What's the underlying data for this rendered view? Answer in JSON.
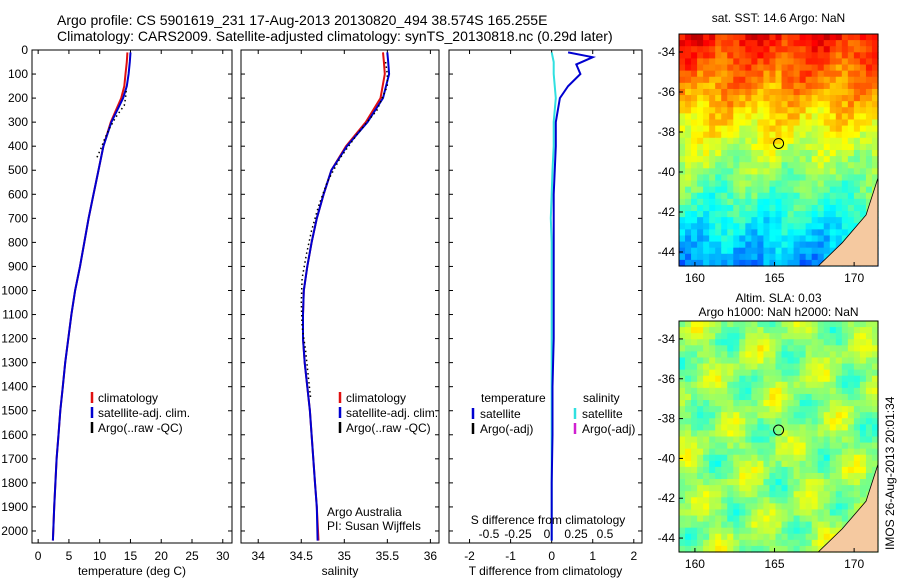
{
  "header": {
    "line1": "Argo profile: CS 5901619_231 17-Aug-2013 20130820_494 38.574S 165.255E",
    "line2": "Climatology: CARS2009. Satellite-adjusted climatology: synTS_20130818.nc (0.29d later)"
  },
  "colors": {
    "climatology": "#e01010",
    "satellite": "#0000d0",
    "argo": "#000000",
    "sal_satellite": "#30e0e0",
    "sal_argo": "#d020d0"
  },
  "depth_axis": {
    "ylim": [
      0,
      2050
    ],
    "ticks": [
      0,
      100,
      200,
      300,
      400,
      500,
      600,
      700,
      800,
      900,
      1000,
      1100,
      1200,
      1300,
      1400,
      1500,
      1600,
      1700,
      1800,
      1900,
      2000
    ]
  },
  "chart_data": [
    {
      "type": "line",
      "id": "temperature",
      "xlabel": "temperature (deg C)",
      "xlim": [
        -1,
        31.5
      ],
      "xticks": [
        0,
        5,
        10,
        15,
        20,
        25,
        30
      ],
      "legend": [
        "climatology",
        "satellite-adj. clim.",
        "Argo(..raw -QC)"
      ],
      "series": [
        {
          "name": "climatology",
          "color": "#e01010",
          "x": [
            14.5,
            14.4,
            14.2,
            14.0,
            13.5,
            11.8,
            10.6,
            9.8,
            9.0,
            8.2,
            7.5,
            6.8,
            6.0,
            5.4,
            4.9,
            4.4,
            4.0,
            3.6,
            3.3,
            3.0,
            2.8,
            2.6,
            2.4
          ],
          "y": [
            10,
            50,
            100,
            150,
            200,
            300,
            400,
            500,
            600,
            700,
            800,
            900,
            1000,
            1100,
            1200,
            1300,
            1400,
            1500,
            1600,
            1700,
            1800,
            1900,
            2040
          ]
        },
        {
          "name": "satellite-adj. clim.",
          "color": "#0000d0",
          "x": [
            15.0,
            14.9,
            14.7,
            14.4,
            13.8,
            11.9,
            10.6,
            9.8,
            9.0,
            8.2,
            7.5,
            6.8,
            6.0,
            5.4,
            4.9,
            4.4,
            4.0,
            3.6,
            3.3,
            3.0,
            2.8,
            2.6,
            2.4
          ],
          "y": [
            10,
            50,
            100,
            150,
            200,
            300,
            400,
            500,
            600,
            700,
            800,
            900,
            1000,
            1100,
            1200,
            1300,
            1400,
            1500,
            1600,
            1700,
            1800,
            1900,
            2040
          ]
        },
        {
          "name": "Argo(..raw -QC)",
          "color": "#000000",
          "x": [
            14.3,
            14.2,
            14.0,
            12.6,
            11.5,
            10.8,
            10.2,
            9.5
          ],
          "y": [
            170,
            200,
            230,
            280,
            330,
            370,
            410,
            450
          ]
        }
      ]
    },
    {
      "type": "line",
      "id": "salinity",
      "xlabel": "salinity",
      "xlim": [
        33.8,
        36.1
      ],
      "xticks": [
        34,
        34.5,
        35,
        35.5,
        36
      ],
      "legend": [
        "climatology",
        "satellite-adj. clim.",
        "Argo(..raw -QC)"
      ],
      "annotation": [
        "Argo Australia",
        "PI: Susan Wijffels"
      ],
      "series": [
        {
          "name": "climatology",
          "color": "#e01010",
          "x": [
            35.45,
            35.46,
            35.47,
            35.42,
            35.25,
            35.02,
            34.85,
            34.76,
            34.68,
            34.62,
            34.57,
            34.53,
            34.52,
            34.52,
            34.54,
            34.57,
            34.6,
            34.62,
            34.64,
            34.66,
            34.68,
            34.7
          ],
          "y": [
            10,
            50,
            100,
            200,
            300,
            400,
            500,
            600,
            700,
            800,
            900,
            1000,
            1100,
            1200,
            1300,
            1400,
            1500,
            1600,
            1700,
            1800,
            1900,
            2040
          ]
        },
        {
          "name": "satellite-adj. clim.",
          "color": "#0000d0",
          "x": [
            35.5,
            35.51,
            35.52,
            35.45,
            35.27,
            35.03,
            34.85,
            34.76,
            34.68,
            34.62,
            34.57,
            34.53,
            34.52,
            34.52,
            34.54,
            34.57,
            34.6,
            34.62,
            34.64,
            34.66,
            34.68,
            34.69
          ],
          "y": [
            10,
            50,
            100,
            200,
            300,
            400,
            500,
            600,
            700,
            800,
            900,
            1000,
            1100,
            1200,
            1300,
            1400,
            1500,
            1600,
            1700,
            1800,
            1900,
            2040
          ]
        },
        {
          "name": "Argo(..raw -QC)",
          "color": "#000000",
          "x": [
            35.48,
            35.5,
            35.5,
            35.38,
            35.15,
            34.95,
            34.8,
            34.7,
            34.62,
            34.56,
            34.51,
            34.5,
            34.51,
            34.55,
            34.58,
            34.61
          ],
          "y": [
            50,
            100,
            150,
            250,
            350,
            450,
            550,
            650,
            750,
            850,
            950,
            1050,
            1150,
            1250,
            1350,
            1450
          ]
        }
      ]
    },
    {
      "type": "line",
      "id": "difference",
      "xlabel": "T difference from climatology",
      "xlabel_top": "S difference from climatology",
      "xlim": [
        -2.5,
        2.2
      ],
      "xticks": [
        -2,
        -1,
        0,
        1,
        2
      ],
      "xticklabels": [
        "-2",
        "-1",
        "0",
        "1",
        "2"
      ],
      "sticks": [
        -0.5,
        -0.25,
        0,
        0.25,
        0.5
      ],
      "legend_temperature_title": "temperature",
      "legend_salinity_title": "salinity",
      "legend_temperature": [
        "satellite",
        "Argo(-adj)"
      ],
      "legend_salinity": [
        "satellite",
        "Argo(-adj)"
      ],
      "series": [
        {
          "name": "salinity satellite",
          "color": "#30e0e0",
          "x": [
            0.0,
            0.05,
            0.05,
            0.1,
            0.05,
            0.05,
            0.02,
            0.0,
            -0.02,
            0.0,
            0.0,
            0.0,
            0.0,
            0.0,
            0.0,
            0.0,
            0.0
          ],
          "y": [
            10,
            50,
            100,
            200,
            300,
            400,
            500,
            600,
            700,
            800,
            1000,
            1200,
            1400,
            1600,
            1800,
            1900,
            2040
          ]
        },
        {
          "name": "temperature satellite",
          "color": "#0000d0",
          "x": [
            0.4,
            1.0,
            0.6,
            0.7,
            0.4,
            0.2,
            0.1,
            0.1,
            0.05,
            0.05,
            0.05,
            0.05,
            0.02,
            0.02,
            0.0,
            0.0,
            0.0
          ],
          "y": [
            10,
            30,
            60,
            100,
            150,
            200,
            300,
            400,
            600,
            800,
            1000,
            1200,
            1400,
            1600,
            1800,
            1900,
            2040
          ]
        }
      ]
    }
  ],
  "maps": [
    {
      "title": "sat. SST: 14.6 Argo: NaN",
      "xlim": [
        159,
        171.5
      ],
      "ylim": [
        -44.7,
        -33.1
      ],
      "xticks": [
        160,
        165,
        170
      ],
      "yticks": [
        -34,
        -36,
        -38,
        -40,
        -42,
        -44
      ],
      "marker": {
        "lon": 165.255,
        "lat": -38.574
      },
      "colormap": "jet"
    },
    {
      "title": [
        "Altim. SLA: 0.03",
        "Argo h1000: NaN h2000: NaN"
      ],
      "xlim": [
        159,
        171.5
      ],
      "ylim": [
        -44.7,
        -33.1
      ],
      "xticks": [
        160,
        165,
        170
      ],
      "yticks": [
        -34,
        -36,
        -38,
        -40,
        -42,
        -44
      ],
      "marker": {
        "lon": 165.255,
        "lat": -38.574
      },
      "colormap": "jet"
    }
  ],
  "footer": "IMOS 26-Aug-2013 20:01:34"
}
